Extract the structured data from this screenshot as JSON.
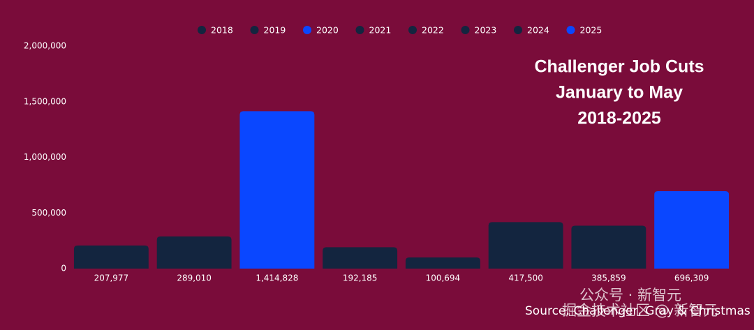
{
  "chart_data": {
    "type": "bar",
    "title": [
      "Challenger Job Cuts",
      "January to May",
      "2018-2025"
    ],
    "categories": [
      "2018",
      "2019",
      "2020",
      "2021",
      "2022",
      "2023",
      "2024",
      "2025"
    ],
    "values": [
      207977,
      289010,
      1414828,
      192185,
      100694,
      417500,
      385859,
      696309
    ],
    "value_labels": [
      "207,977",
      "289,010",
      "1,414,828",
      "192,185",
      "100,694",
      "417,500",
      "385,859",
      "696,309"
    ],
    "colors": [
      "#13253f",
      "#13253f",
      "#0a47ff",
      "#13253f",
      "#13253f",
      "#13253f",
      "#13253f",
      "#0a47ff"
    ],
    "ylim": [
      0,
      2000000
    ],
    "yticks": [
      {
        "value": 0,
        "label": "0"
      },
      {
        "value": 500000,
        "label": "500,000"
      },
      {
        "value": 1000000,
        "label": "1,000,000"
      },
      {
        "value": 1500000,
        "label": "1,500,000"
      },
      {
        "value": 2000000,
        "label": "2,000,000"
      }
    ],
    "legend_position": "top",
    "source": "Source: Challenger, Gray & Christmas",
    "watermarks": [
      "公众号 · 新智元",
      "掘金技术社区 @ 新智元"
    ]
  }
}
